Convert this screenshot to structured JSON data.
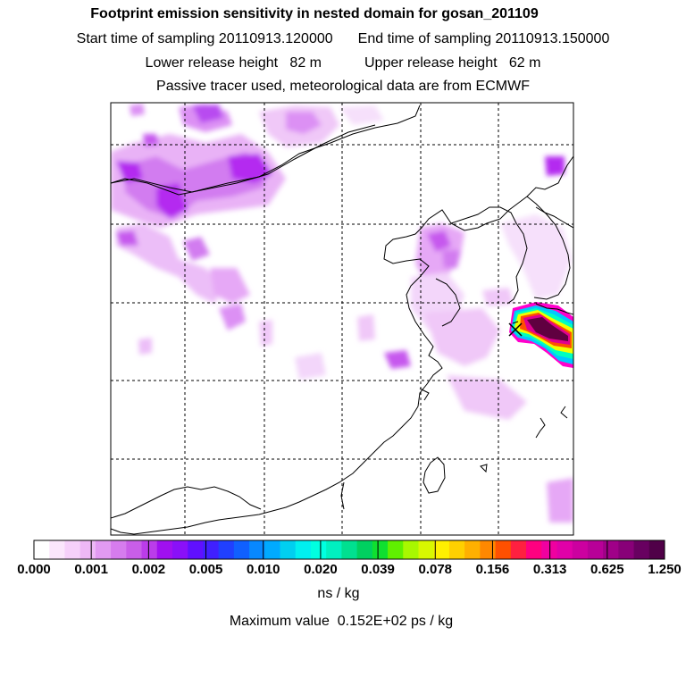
{
  "header": {
    "title": "Footprint emission sensitivity in nested domain for gosan_201109",
    "start_label": "Start time of sampling 20110913.120000",
    "end_label": "End time of sampling 20110913.150000",
    "lower_label": "Lower release height   82 m",
    "upper_label": "Upper release height   62 m",
    "tracer_note": "Passive tracer used, meteorological data are from ECMWF"
  },
  "map": {
    "receptor_marker": "x",
    "grid_style": "dashed",
    "background": "#ffffff",
    "coastline_color": "#000000",
    "field_colors": [
      "#f6d8fa",
      "#e6a0f2",
      "#cc66ee",
      "#a800f0",
      "#7a2cf8"
    ],
    "plume_colors": [
      "#ff00ff",
      "#00c0ff",
      "#00ffd0",
      "#ffee00",
      "#ff4000",
      "#d00090",
      "#600040"
    ]
  },
  "colorbar": {
    "ticks": [
      "0.000",
      "0.001",
      "0.002",
      "0.005",
      "0.010",
      "0.020",
      "0.039",
      "0.078",
      "0.156",
      "0.313",
      "0.625",
      "1.250"
    ],
    "unit": "ns / kg",
    "colors": [
      "#ffffff",
      "#fbe6fc",
      "#f6d0fa",
      "#eeb8f6",
      "#e29af2",
      "#d67cee",
      "#c95ee8",
      "#bb3cea",
      "#a010f0",
      "#8a10f8",
      "#6010ff",
      "#4020ff",
      "#2040ff",
      "#1060ff",
      "#0888ff",
      "#00aaff",
      "#00cff0",
      "#00f0f0",
      "#00ffe0",
      "#00f0c0",
      "#00e090",
      "#00d060",
      "#10e030",
      "#60f000",
      "#a8f800",
      "#d8f800",
      "#fff000",
      "#ffd000",
      "#ffb000",
      "#ff8800",
      "#ff5000",
      "#ff2040",
      "#ff0080",
      "#f000a0",
      "#e000a8",
      "#cc00a0",
      "#b80098",
      "#a00088",
      "#880078",
      "#680060",
      "#500048"
    ]
  },
  "max_value": "Maximum value  0.152E+02 ps / kg"
}
